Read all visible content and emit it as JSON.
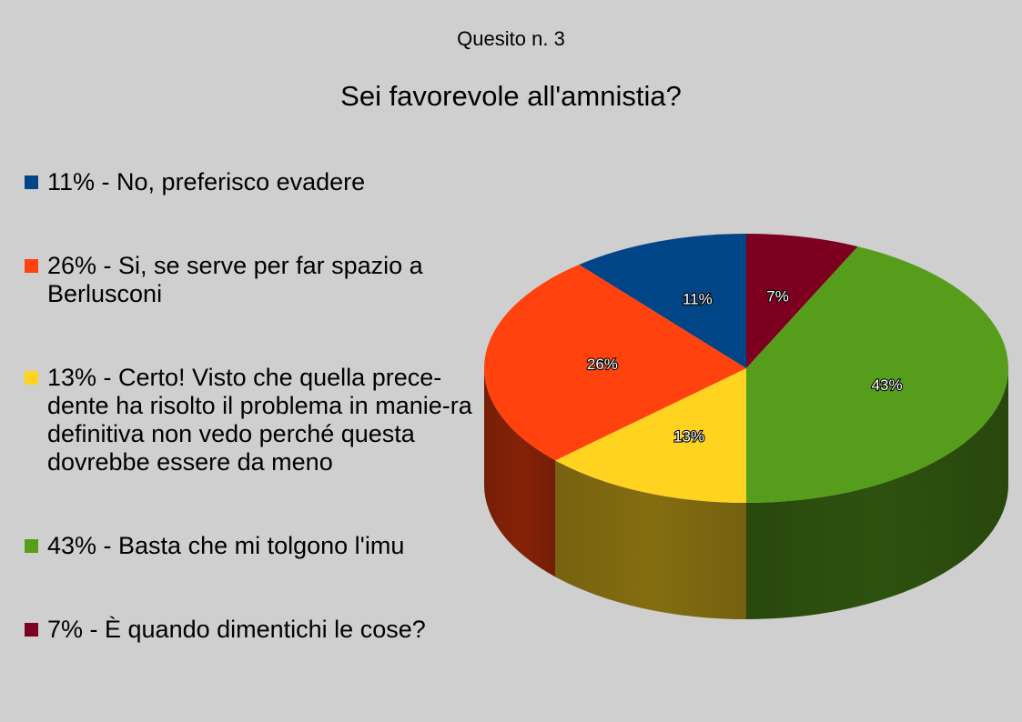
{
  "supertitle": "Quesito n. 3",
  "title": "Sei favorevole all'amnistia?",
  "chart_data": {
    "type": "pie",
    "title": "Sei favorevole all'amnistia?",
    "legend_position": "left",
    "slices": [
      {
        "label": "11% - No, preferisco evadere",
        "value": 11,
        "data_label": "11%",
        "color": "#004586"
      },
      {
        "label": "26% - Si, se serve per far spazio a Berlusconi",
        "value": 26,
        "data_label": "26%",
        "color": "#ff420e"
      },
      {
        "label": "13% - Certo! Visto che quella prece-dente ha risolto il problema in manie-ra definitiva non vedo perché questa dovrebbe essere da meno",
        "value": 13,
        "data_label": "13%",
        "color": "#ffd320"
      },
      {
        "label": "43% - Basta che mi tolgono l'imu",
        "value": 43,
        "data_label": "43%",
        "color": "#579d1c"
      },
      {
        "label": "7% - È quando dimentichi le cose?",
        "value": 7,
        "data_label": "7%",
        "color": "#7e0021"
      }
    ]
  }
}
